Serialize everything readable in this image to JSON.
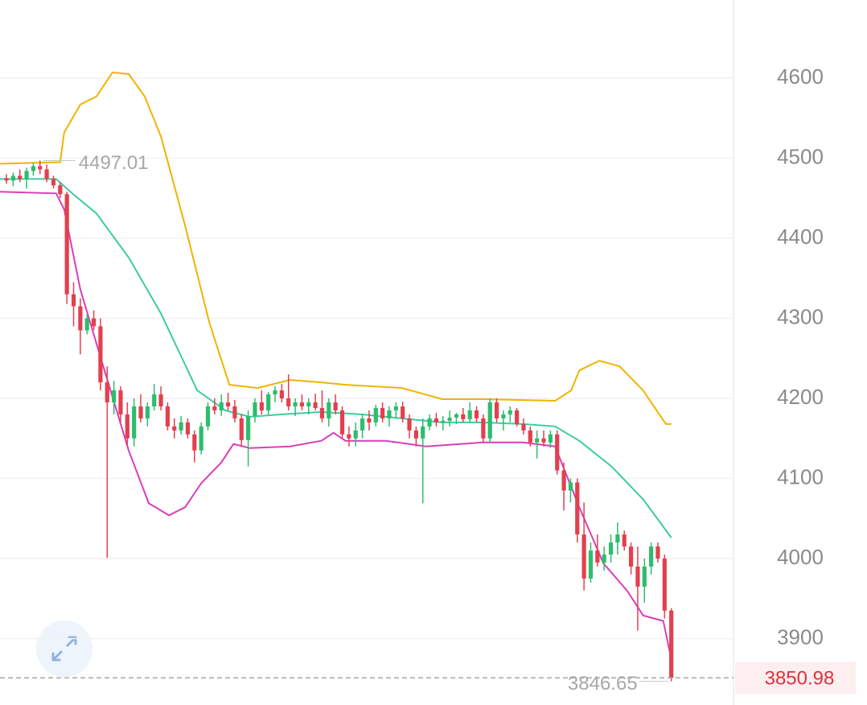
{
  "chart_data": {
    "type": "candlestick",
    "up_color": "#2dbd6e",
    "down_color": "#e2404f",
    "xlim": [
      -0.96,
      108.26
    ],
    "ylim": [
      3817.1,
      4697.5
    ],
    "yticks": [
      3900,
      4000,
      4100,
      4200,
      4300,
      4400,
      4500,
      4600
    ],
    "grid": true,
    "ohlc": [
      [
        4475,
        4480,
        4468,
        4472
      ],
      [
        4472,
        4482,
        4465,
        4478
      ],
      [
        4478,
        4486,
        4470,
        4474
      ],
      [
        4474,
        4488,
        4462,
        4484
      ],
      [
        4484,
        4494,
        4478,
        4490
      ],
      [
        4490,
        4497.01,
        4480,
        4486
      ],
      [
        4486,
        4492,
        4470,
        4474
      ],
      [
        4474,
        4478,
        4462,
        4466
      ],
      [
        4466,
        4470,
        4450,
        4455
      ],
      [
        4455,
        4458,
        4318,
        4330
      ],
      [
        4330,
        4345,
        4290,
        4315
      ],
      [
        4315,
        4325,
        4255,
        4285
      ],
      [
        4285,
        4305,
        4280,
        4300
      ],
      [
        4300,
        4310,
        4285,
        4290
      ],
      [
        4290,
        4300,
        4210,
        4220
      ],
      [
        4220,
        4240,
        4001,
        4195
      ],
      [
        4195,
        4222,
        4180,
        4210
      ],
      [
        4210,
        4215,
        4170,
        4180
      ],
      [
        4180,
        4195,
        4140,
        4150
      ],
      [
        4150,
        4200,
        4140,
        4190
      ],
      [
        4190,
        4205,
        4170,
        4175
      ],
      [
        4175,
        4195,
        4165,
        4190
      ],
      [
        4190,
        4218,
        4185,
        4205
      ],
      [
        4205,
        4215,
        4185,
        4190
      ],
      [
        4190,
        4195,
        4160,
        4165
      ],
      [
        4165,
        4175,
        4150,
        4160
      ],
      [
        4160,
        4178,
        4155,
        4170
      ],
      [
        4170,
        4175,
        4150,
        4155
      ],
      [
        4155,
        4160,
        4120,
        4135
      ],
      [
        4135,
        4170,
        4130,
        4165
      ],
      [
        4165,
        4195,
        4160,
        4190
      ],
      [
        4190,
        4200,
        4180,
        4185
      ],
      [
        4185,
        4205,
        4178,
        4195
      ],
      [
        4195,
        4207,
        4185,
        4190
      ],
      [
        4190,
        4198,
        4170,
        4175
      ],
      [
        4175,
        4180,
        4140,
        4148
      ],
      [
        4148,
        4185,
        4115,
        4178
      ],
      [
        4178,
        4200,
        4170,
        4195
      ],
      [
        4195,
        4210,
        4180,
        4185
      ],
      [
        4185,
        4208,
        4180,
        4205
      ],
      [
        4205,
        4215,
        4195,
        4210
      ],
      [
        4210,
        4218,
        4195,
        4200
      ],
      [
        4200,
        4230,
        4185,
        4190
      ],
      [
        4190,
        4200,
        4178,
        4195
      ],
      [
        4195,
        4205,
        4185,
        4190
      ],
      [
        4190,
        4200,
        4180,
        4195
      ],
      [
        4195,
        4206,
        4185,
        4188
      ],
      [
        4188,
        4210,
        4170,
        4175
      ],
      [
        4175,
        4200,
        4165,
        4195
      ],
      [
        4195,
        4205,
        4180,
        4185
      ],
      [
        4185,
        4190,
        4150,
        4155
      ],
      [
        4155,
        4165,
        4140,
        4150
      ],
      [
        4150,
        4170,
        4140,
        4160
      ],
      [
        4160,
        4180,
        4150,
        4175
      ],
      [
        4175,
        4185,
        4160,
        4170
      ],
      [
        4170,
        4192,
        4165,
        4188
      ],
      [
        4188,
        4195,
        4170,
        4175
      ],
      [
        4175,
        4190,
        4165,
        4185
      ],
      [
        4185,
        4195,
        4175,
        4190
      ],
      [
        4190,
        4196,
        4170,
        4175
      ],
      [
        4175,
        4180,
        4150,
        4160
      ],
      [
        4160,
        4165,
        4140,
        4150
      ],
      [
        4150,
        4175,
        4069,
        4165
      ],
      [
        4165,
        4180,
        4160,
        4175
      ],
      [
        4175,
        4182,
        4165,
        4170
      ],
      [
        4170,
        4178,
        4160,
        4172
      ],
      [
        4172,
        4185,
        4165,
        4176
      ],
      [
        4176,
        4182,
        4168,
        4180
      ],
      [
        4180,
        4188,
        4170,
        4174
      ],
      [
        4174,
        4195,
        4170,
        4185
      ],
      [
        4185,
        4190,
        4170,
        4175
      ],
      [
        4175,
        4180,
        4145,
        4150
      ],
      [
        4150,
        4200,
        4145,
        4195
      ],
      [
        4195,
        4200,
        4170,
        4175
      ],
      [
        4175,
        4185,
        4160,
        4180
      ],
      [
        4180,
        4190,
        4170,
        4185
      ],
      [
        4185,
        4188,
        4165,
        4168
      ],
      [
        4168,
        4175,
        4155,
        4160
      ],
      [
        4160,
        4165,
        4140,
        4145
      ],
      [
        4145,
        4160,
        4125,
        4150
      ],
      [
        4150,
        4160,
        4140,
        4145
      ],
      [
        4145,
        4160,
        4138,
        4155
      ],
      [
        4155,
        4160,
        4105,
        4110
      ],
      [
        4110,
        4120,
        4060,
        4085
      ],
      [
        4085,
        4100,
        4070,
        4095
      ],
      [
        4095,
        4100,
        4020,
        4030
      ],
      [
        4030,
        4070,
        3960,
        3975
      ],
      [
        3975,
        4020,
        3970,
        4010
      ],
      [
        4010,
        4030,
        3990,
        3995
      ],
      [
        3995,
        4015,
        3985,
        4005
      ],
      [
        4005,
        4030,
        3995,
        4020
      ],
      [
        4020,
        4045,
        4005,
        4030
      ],
      [
        4030,
        4035,
        4010,
        4015
      ],
      [
        4015,
        4020,
        3980,
        3990
      ],
      [
        3990,
        4015,
        3910,
        3965
      ],
      [
        3965,
        4000,
        3945,
        3990
      ],
      [
        3990,
        4020,
        3980,
        4015
      ],
      [
        4015,
        4020,
        3995,
        4000
      ],
      [
        4000,
        4005,
        3925,
        3935
      ],
      [
        3935,
        3938,
        3846.65,
        3850.98
      ]
    ],
    "bands": [
      {
        "color": "#f0b400",
        "x": [
          -1,
          8,
          8.6,
          11,
          13.4,
          15.8,
          18.2,
          20.6,
          23,
          26.6,
          30.2,
          33.2,
          37.4,
          42.2,
          46.9,
          50.5,
          58.9,
          64.9,
          70.9,
          81.7,
          84.1,
          85.3,
          88.3,
          91.3,
          94.8,
          98.2,
          99
        ],
        "values": [
          4493,
          4495,
          4532,
          4567,
          4577,
          4607,
          4605,
          4577,
          4527,
          4416,
          4295,
          4217,
          4213,
          4223,
          4220,
          4217,
          4213,
          4199,
          4199,
          4197,
          4210,
          4235,
          4247,
          4240,
          4210,
          4168,
          4168
        ]
      },
      {
        "color": "#3ecba0",
        "x": [
          -1,
          7.4,
          9.8,
          13.4,
          18.2,
          23,
          28.4,
          32.6,
          36.2,
          41,
          46.9,
          52.9,
          58.9,
          64.9,
          70.9,
          76.9,
          81.7,
          85.3,
          90.1,
          94.8,
          99
        ],
        "values": [
          4474,
          4474,
          4456,
          4431,
          4376,
          4306,
          4210,
          4185,
          4177,
          4180,
          4183,
          4180,
          4175,
          4170,
          4170,
          4168,
          4165,
          4147,
          4115,
          4074,
          4026
        ]
      },
      {
        "color": "#d83fb8",
        "x": [
          -1,
          7.4,
          8.6,
          11,
          14.6,
          18.2,
          21.2,
          24.2,
          26.6,
          29,
          32,
          33.8,
          36.2,
          42.2,
          46.9,
          48.7,
          50.5,
          56.5,
          62.5,
          70.9,
          76.9,
          81.7,
          85.3,
          88.9,
          92.5,
          94.8,
          97.8,
          99
        ],
        "values": [
          4458,
          4456,
          4436,
          4336,
          4235,
          4135,
          4069,
          4054,
          4064,
          4094,
          4120,
          4143,
          4138,
          4140,
          4147,
          4157,
          4147,
          4147,
          4140,
          4145,
          4145,
          4140,
          4064,
          3994,
          3959,
          3929,
          3922,
          3874
        ]
      }
    ],
    "high_label": 4497.01,
    "low_label": 3846.65,
    "last_price": 3850.98
  }
}
